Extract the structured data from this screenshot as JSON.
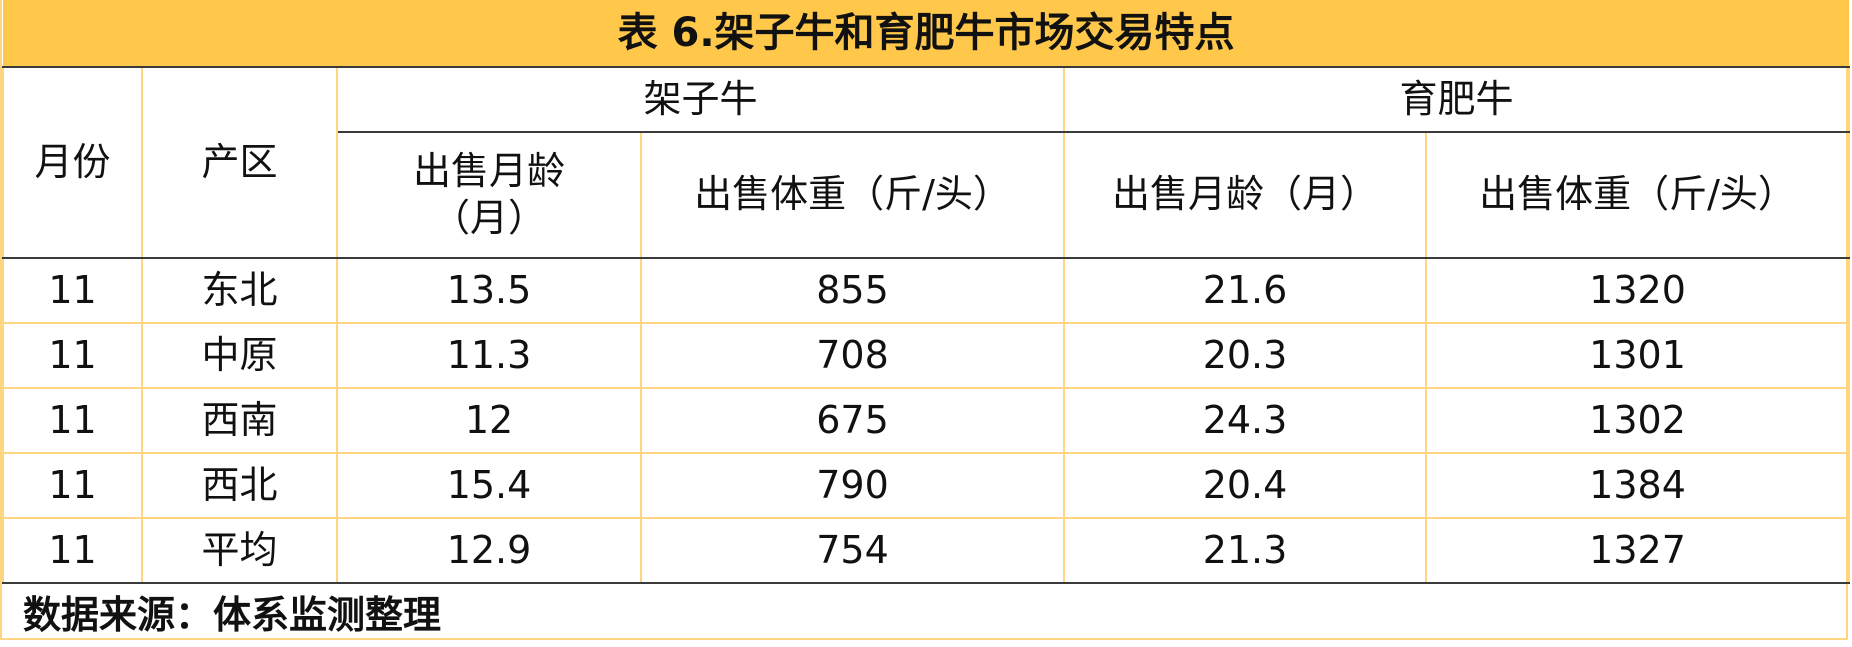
{
  "title": "表 6.架子牛和育肥牛市场交易特点",
  "headers": {
    "month": "月份",
    "region": "产区",
    "group1": "架子牛",
    "group2": "育肥牛",
    "sub": [
      "出售月龄（月）",
      "出售体重（斤/头）",
      "出售月龄（月）",
      "出售体重（斤/头）"
    ]
  },
  "rows": [
    [
      "11",
      "东北",
      "13.5",
      "855",
      "21.6",
      "1320"
    ],
    [
      "11",
      "中原",
      "11.3",
      "708",
      "20.3",
      "1301"
    ],
    [
      "11",
      "西南",
      "12",
      "675",
      "24.3",
      "1302"
    ],
    [
      "11",
      "西北",
      "15.4",
      "790",
      "20.4",
      "1384"
    ],
    [
      "11",
      "平均",
      "12.9",
      "754",
      "21.3",
      "1327"
    ]
  ],
  "source": "数据来源：体系监测整理",
  "colors": {
    "title_bg": "#ffc84a",
    "border": "#ffd580",
    "rule": "#3a3a3a"
  }
}
